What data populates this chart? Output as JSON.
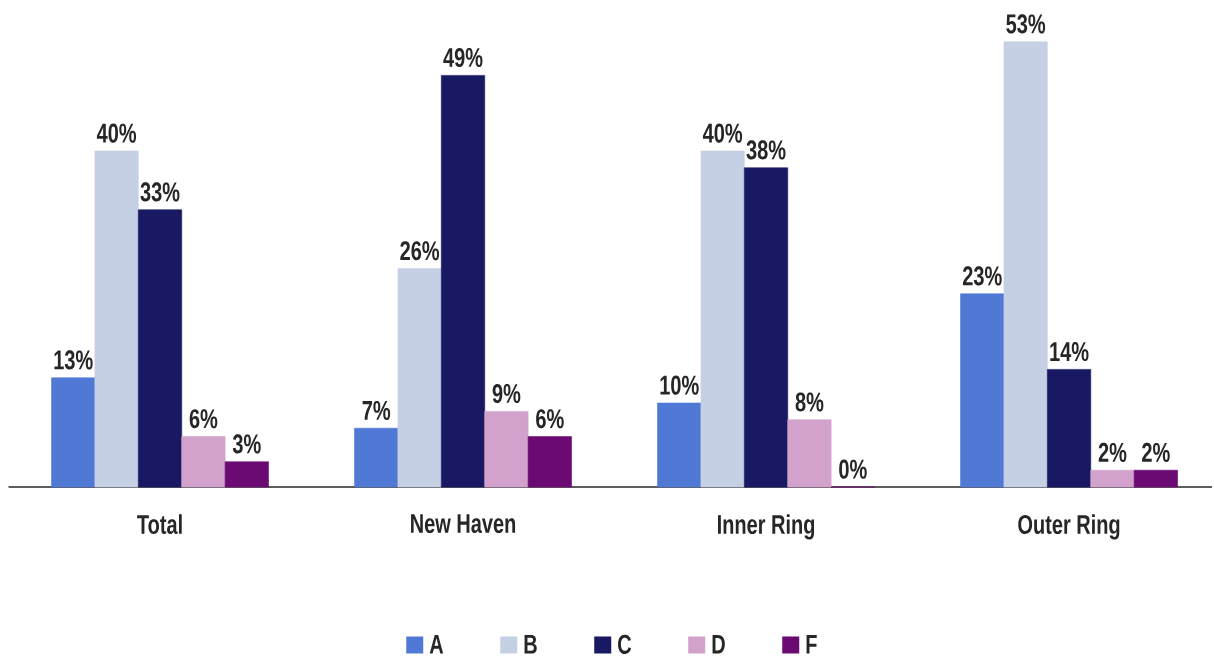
{
  "chart_data": {
    "type": "bar",
    "categories": [
      "Total",
      "New Haven",
      "Inner Ring",
      "Outer Ring"
    ],
    "series": [
      {
        "name": "A",
        "color": "#5079d6",
        "values": [
          13,
          7,
          10,
          23
        ],
        "value_labels": [
          "13%",
          "7%",
          "10%",
          "23%"
        ]
      },
      {
        "name": "B",
        "color": "#c6d0e5",
        "values": [
          40,
          26,
          40,
          53
        ],
        "value_labels": [
          "40%",
          "26%",
          "40%",
          "53%"
        ]
      },
      {
        "name": "C",
        "color": "#181863",
        "values": [
          33,
          49,
          38,
          14
        ],
        "value_labels": [
          "33%",
          "49%",
          "38%",
          "14%"
        ]
      },
      {
        "name": "D",
        "color": "#d2a2cc",
        "values": [
          6,
          9,
          8,
          2
        ],
        "value_labels": [
          "6%",
          "9%",
          "8%",
          "2%"
        ]
      },
      {
        "name": "F",
        "color": "#6b0a72",
        "values": [
          3,
          6,
          0,
          2
        ],
        "value_labels": [
          "3%",
          "6%",
          "0%",
          "2%"
        ]
      }
    ],
    "legend": "bottom"
  }
}
